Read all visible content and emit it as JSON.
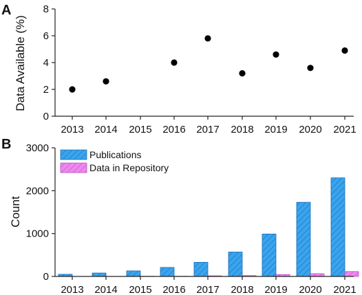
{
  "chart_data": [
    {
      "panel_label": "A",
      "type": "scatter",
      "ylabel": "Data Available (%)",
      "xlabel": "",
      "ylim": [
        0,
        8
      ],
      "yticks": [
        0,
        2,
        4,
        6,
        8
      ],
      "categories": [
        "2013",
        "2014",
        "2015",
        "2016",
        "2017",
        "2018",
        "2019",
        "2020",
        "2021"
      ],
      "points": [
        {
          "x": "2013",
          "y": 2.0
        },
        {
          "x": "2014",
          "y": 2.6
        },
        {
          "x": "2016",
          "y": 4.0
        },
        {
          "x": "2017",
          "y": 5.8
        },
        {
          "x": "2018",
          "y": 3.2
        },
        {
          "x": "2019",
          "y": 4.6
        },
        {
          "x": "2020",
          "y": 3.6
        },
        {
          "x": "2021",
          "y": 4.9
        }
      ],
      "marker_color": "#000000",
      "grid": false
    },
    {
      "panel_label": "B",
      "type": "bar",
      "ylabel": "Count",
      "xlabel": "",
      "ylim": [
        0,
        3000
      ],
      "yticks": [
        0,
        1000,
        2000,
        3000
      ],
      "categories": [
        "2013",
        "2014",
        "2015",
        "2016",
        "2017",
        "2018",
        "2019",
        "2020",
        "2021"
      ],
      "series": [
        {
          "name": "Publications",
          "color": "#3aa4ee",
          "values": [
            50,
            80,
            130,
            210,
            330,
            570,
            990,
            1730,
            2300
          ]
        },
        {
          "name": "Data in Repository",
          "color": "#ee88ee",
          "values": [
            0,
            0,
            5,
            5,
            15,
            20,
            45,
            65,
            115
          ]
        }
      ],
      "legend_position": "top-left",
      "grid": false
    }
  ]
}
